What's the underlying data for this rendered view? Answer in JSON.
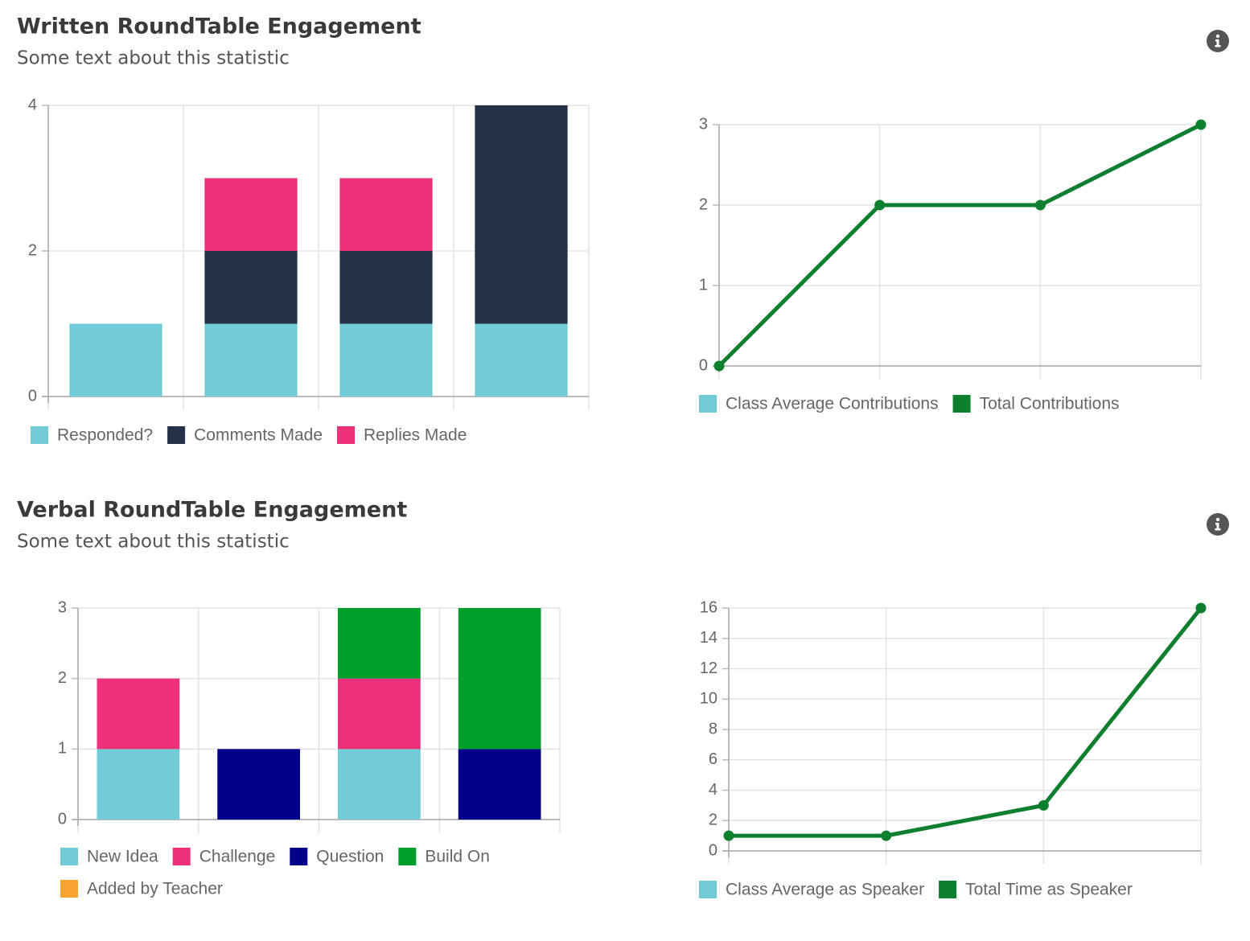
{
  "sections": [
    {
      "title": "Written RoundTable Engagement",
      "subtitle": "Some text about this statistic"
    },
    {
      "title": "Verbal RoundTable Engagement",
      "subtitle": "Some text about this statistic"
    }
  ],
  "chart_data": [
    {
      "type": "stacked-bar",
      "categories": [
        null,
        null,
        null,
        null
      ],
      "series": [
        {
          "name": "Responded?",
          "color": "#72cbd6",
          "values": [
            1,
            1,
            1,
            1
          ]
        },
        {
          "name": "Comments Made",
          "color": "#263248",
          "values": [
            0,
            1,
            1,
            3
          ]
        },
        {
          "name": "Replies Made",
          "color": "#ee2f7a",
          "values": [
            0,
            1,
            1,
            0
          ]
        }
      ],
      "ylim": [
        0,
        4
      ],
      "yticks": [
        0,
        2,
        4
      ],
      "grid": true
    },
    {
      "type": "line",
      "categories": [
        null,
        null,
        null,
        null
      ],
      "series": [
        {
          "name": "Class Average Contributions",
          "color": "#72cbd6",
          "values": [
            null,
            null,
            null,
            null
          ]
        },
        {
          "name": "Total Contributions",
          "color": "#0e7f2e",
          "values": [
            0,
            2,
            2,
            3
          ]
        }
      ],
      "ylim": [
        0,
        3
      ],
      "yticks": [
        0,
        1,
        2,
        3
      ],
      "grid": true
    },
    {
      "type": "stacked-bar",
      "categories": [
        null,
        null,
        null,
        null
      ],
      "series": [
        {
          "name": "New Idea",
          "color": "#72cbd6",
          "values": [
            1,
            0,
            1,
            0
          ]
        },
        {
          "name": "Challenge",
          "color": "#ee2f7a",
          "values": [
            1,
            0,
            1,
            0
          ]
        },
        {
          "name": "Question",
          "color": "#00008b",
          "values": [
            0,
            1,
            0,
            1
          ]
        },
        {
          "name": "Build On",
          "color": "#009e2a",
          "values": [
            0,
            0,
            1,
            2
          ]
        },
        {
          "name": "Added by Teacher",
          "color": "#f9a42e",
          "values": [
            0,
            0,
            0,
            0
          ]
        }
      ],
      "ylim": [
        0,
        3
      ],
      "yticks": [
        0,
        1,
        2,
        3
      ],
      "grid": true
    },
    {
      "type": "line",
      "categories": [
        null,
        null,
        null,
        null
      ],
      "series": [
        {
          "name": "Class Average as Speaker",
          "color": "#72cbd6",
          "values": [
            null,
            null,
            null,
            null
          ]
        },
        {
          "name": "Total Time as Speaker",
          "color": "#0e7f2e",
          "values": [
            1,
            1,
            3,
            16
          ]
        }
      ],
      "ylim": [
        0,
        16
      ],
      "yticks": [
        0,
        2,
        4,
        6,
        8,
        10,
        12,
        14,
        16
      ],
      "grid": true
    }
  ]
}
